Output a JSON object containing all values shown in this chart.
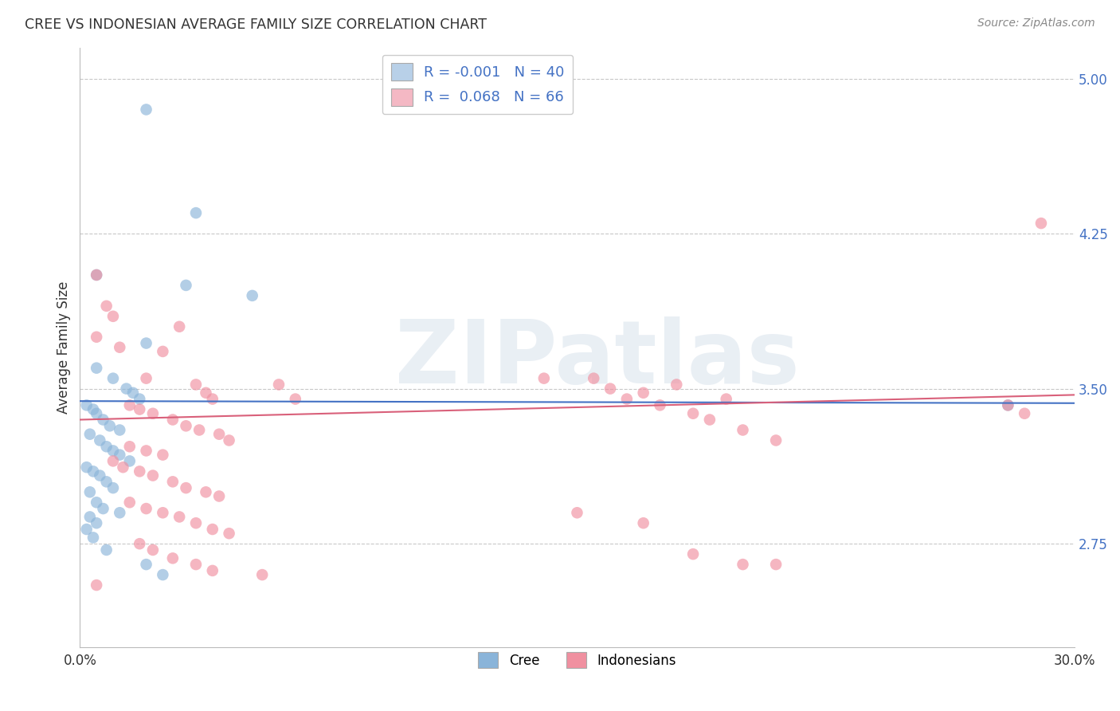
{
  "title": "CREE VS INDONESIAN AVERAGE FAMILY SIZE CORRELATION CHART",
  "source": "Source: ZipAtlas.com",
  "ylabel": "Average Family Size",
  "xlim": [
    0.0,
    0.3
  ],
  "ylim": [
    2.25,
    5.15
  ],
  "yticks": [
    2.75,
    3.5,
    4.25,
    5.0
  ],
  "ytick_labels": [
    "2.75",
    "3.50",
    "4.25",
    "5.00"
  ],
  "background_color": "#ffffff",
  "grid_color": "#c8c8c8",
  "watermark_text": "ZIPatlas",
  "cree_color": "#8ab4d9",
  "indonesian_color": "#f090a0",
  "cree_line_color": "#4472c4",
  "indonesian_line_color": "#d9607a",
  "legend_entries": [
    {
      "label": "R = -0.001   N = 40",
      "color": "#b8d0e8"
    },
    {
      "label": "R =  0.068   N = 66",
      "color": "#f4b8c4"
    }
  ],
  "bottom_legend": [
    "Cree",
    "Indonesians"
  ],
  "cree_points": [
    [
      0.02,
      4.85
    ],
    [
      0.035,
      4.35
    ],
    [
      0.005,
      4.05
    ],
    [
      0.032,
      4.0
    ],
    [
      0.052,
      3.95
    ],
    [
      0.02,
      3.72
    ],
    [
      0.005,
      3.6
    ],
    [
      0.01,
      3.55
    ],
    [
      0.014,
      3.5
    ],
    [
      0.016,
      3.48
    ],
    [
      0.018,
      3.45
    ],
    [
      0.002,
      3.42
    ],
    [
      0.004,
      3.4
    ],
    [
      0.005,
      3.38
    ],
    [
      0.007,
      3.35
    ],
    [
      0.009,
      3.32
    ],
    [
      0.012,
      3.3
    ],
    [
      0.003,
      3.28
    ],
    [
      0.006,
      3.25
    ],
    [
      0.008,
      3.22
    ],
    [
      0.01,
      3.2
    ],
    [
      0.012,
      3.18
    ],
    [
      0.015,
      3.15
    ],
    [
      0.002,
      3.12
    ],
    [
      0.004,
      3.1
    ],
    [
      0.006,
      3.08
    ],
    [
      0.008,
      3.05
    ],
    [
      0.01,
      3.02
    ],
    [
      0.003,
      3.0
    ],
    [
      0.005,
      2.95
    ],
    [
      0.007,
      2.92
    ],
    [
      0.012,
      2.9
    ],
    [
      0.003,
      2.88
    ],
    [
      0.005,
      2.85
    ],
    [
      0.002,
      2.82
    ],
    [
      0.004,
      2.78
    ],
    [
      0.008,
      2.72
    ],
    [
      0.02,
      2.65
    ],
    [
      0.025,
      2.6
    ],
    [
      0.28,
      3.42
    ]
  ],
  "indonesian_points": [
    [
      0.005,
      4.05
    ],
    [
      0.008,
      3.9
    ],
    [
      0.01,
      3.85
    ],
    [
      0.03,
      3.8
    ],
    [
      0.005,
      3.75
    ],
    [
      0.012,
      3.7
    ],
    [
      0.025,
      3.68
    ],
    [
      0.02,
      3.55
    ],
    [
      0.035,
      3.52
    ],
    [
      0.038,
      3.48
    ],
    [
      0.04,
      3.45
    ],
    [
      0.015,
      3.42
    ],
    [
      0.018,
      3.4
    ],
    [
      0.022,
      3.38
    ],
    [
      0.028,
      3.35
    ],
    [
      0.032,
      3.32
    ],
    [
      0.036,
      3.3
    ],
    [
      0.042,
      3.28
    ],
    [
      0.045,
      3.25
    ],
    [
      0.015,
      3.22
    ],
    [
      0.02,
      3.2
    ],
    [
      0.025,
      3.18
    ],
    [
      0.01,
      3.15
    ],
    [
      0.013,
      3.12
    ],
    [
      0.018,
      3.1
    ],
    [
      0.022,
      3.08
    ],
    [
      0.028,
      3.05
    ],
    [
      0.032,
      3.02
    ],
    [
      0.038,
      3.0
    ],
    [
      0.042,
      2.98
    ],
    [
      0.015,
      2.95
    ],
    [
      0.02,
      2.92
    ],
    [
      0.025,
      2.9
    ],
    [
      0.03,
      2.88
    ],
    [
      0.035,
      2.85
    ],
    [
      0.04,
      2.82
    ],
    [
      0.045,
      2.8
    ],
    [
      0.018,
      2.75
    ],
    [
      0.022,
      2.72
    ],
    [
      0.028,
      2.68
    ],
    [
      0.035,
      2.65
    ],
    [
      0.04,
      2.62
    ],
    [
      0.055,
      2.6
    ],
    [
      0.005,
      2.55
    ],
    [
      0.06,
      3.52
    ],
    [
      0.065,
      3.45
    ],
    [
      0.14,
      3.55
    ],
    [
      0.155,
      3.55
    ],
    [
      0.16,
      3.5
    ],
    [
      0.18,
      3.52
    ],
    [
      0.165,
      3.45
    ],
    [
      0.17,
      3.48
    ],
    [
      0.195,
      3.45
    ],
    [
      0.175,
      3.42
    ],
    [
      0.185,
      3.38
    ],
    [
      0.19,
      3.35
    ],
    [
      0.2,
      3.3
    ],
    [
      0.21,
      3.25
    ],
    [
      0.15,
      2.9
    ],
    [
      0.17,
      2.85
    ],
    [
      0.185,
      2.7
    ],
    [
      0.2,
      2.65
    ],
    [
      0.29,
      4.3
    ],
    [
      0.28,
      3.42
    ],
    [
      0.285,
      3.38
    ],
    [
      0.21,
      2.65
    ]
  ],
  "cree_line_y0": 3.44,
  "cree_line_y1": 3.43,
  "indo_line_y0": 3.35,
  "indo_line_y1": 3.47
}
